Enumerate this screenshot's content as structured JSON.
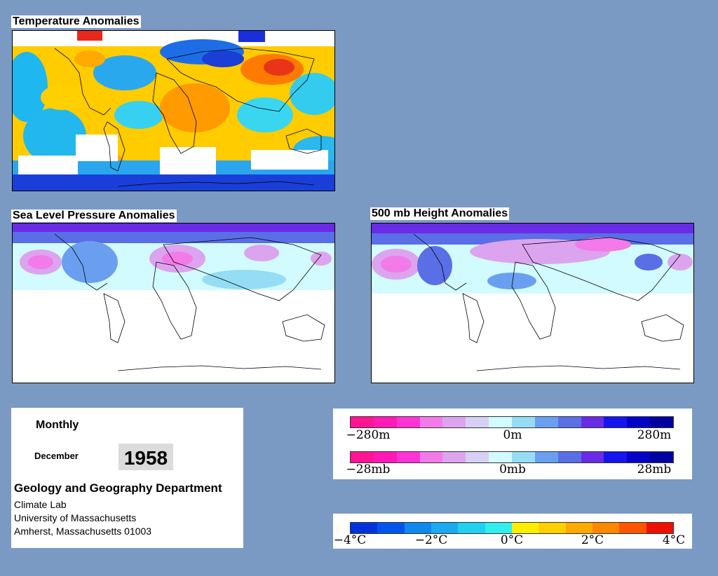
{
  "maps": {
    "temperature": {
      "title": "Temperature Anomalies"
    },
    "pressure": {
      "title": "Sea Level Pressure Anomalies"
    },
    "height": {
      "title": "500 mb Height Anomalies"
    }
  },
  "info": {
    "period": "Monthly",
    "month": "December",
    "year": "1958",
    "department": "Geology and Geography Department",
    "lab": "Climate Lab",
    "university": "University of Massachusetts",
    "address": "Amherst, Massachusetts 01003"
  },
  "scales": {
    "height": {
      "min": "−280m",
      "mid": "0m",
      "max": "280m"
    },
    "pressure": {
      "min": "−28mb",
      "mid": "0mb",
      "max": "28mb"
    },
    "temperature": {
      "t1": "−4°C",
      "t2": "−2°C",
      "t3": "0°C",
      "t4": "2°C",
      "t5": "4°C"
    }
  },
  "colors": {
    "background": "#7b9ac3",
    "pressure_scale": [
      "#ff1493",
      "#ff1ab6",
      "#ff33d6",
      "#f27ae9",
      "#dca4ee",
      "#d7d0f5",
      "#d2fbff",
      "#95ddf5",
      "#6a9ff0",
      "#5a6ee6",
      "#6a2be6",
      "#1515ee",
      "#0303c8",
      "#0000a0"
    ],
    "temperature_scale": [
      "#0033dd",
      "#0055ee",
      "#1188ee",
      "#1aaaf0",
      "#22d0f0",
      "#33eeee",
      "#ffee00",
      "#ffd000",
      "#ffaa00",
      "#ff8800",
      "#ff5500",
      "#ee1100"
    ]
  }
}
